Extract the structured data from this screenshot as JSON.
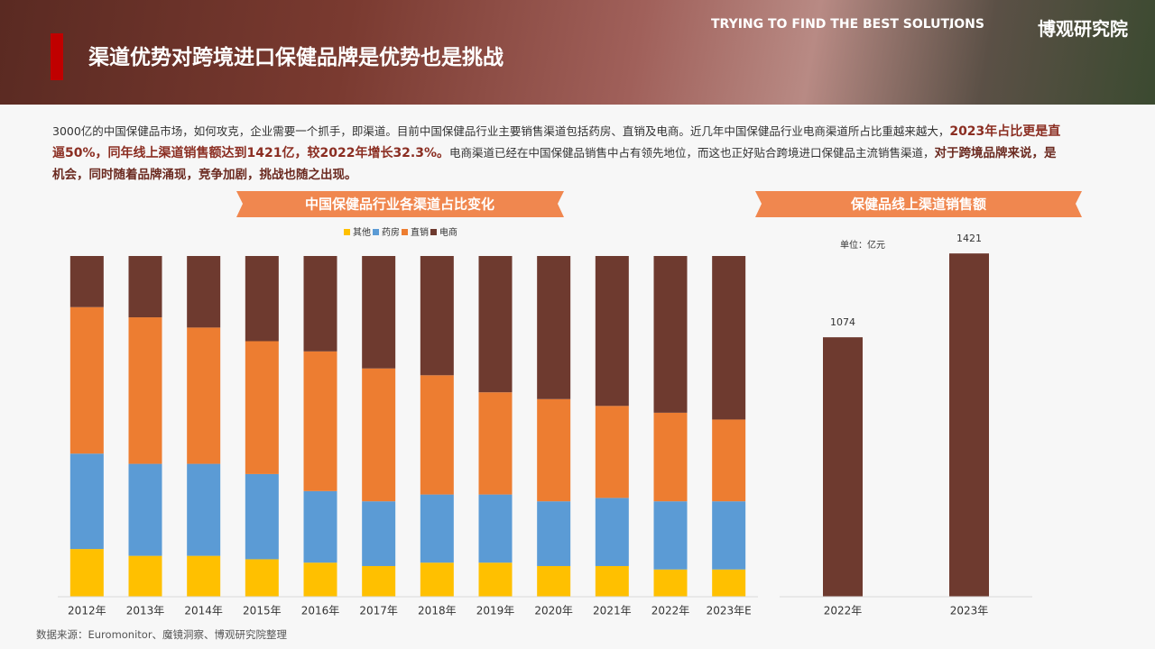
{
  "header": {
    "title": "渠道优势对跨境进口保健品牌是优势也是挑战",
    "tagline": "TRYING TO FIND THE BEST SOLUTIONS",
    "separator": "/",
    "brand": "博观研究院"
  },
  "intro": [
    "3000亿的中国保健品市场，如何攻克，企业需要一个抓手，即渠道。目前中国保健品行业主要销售渠道包括药房、直销及电商。近几年中国保健品行业电商渠道所占比重越来越大，",
    "2023年占比更是直逼50%，同年线上渠道销售额达到1421亿，较2022年增长32.3%。",
    "电商渠道已经在中国保健品销售中占有领先地位，而这也正好贴合跨境进口保健品主流销售渠道，",
    "对于跨境品牌来说，是机会，同时随着品牌涌现，竞争加剧，挑战也随之出现。"
  ],
  "chart_data": [
    {
      "type": "stacked_bar",
      "title": "中国保健品行业各渠道占比变化",
      "categories": [
        "2012年",
        "2013年",
        "2014年",
        "2015年",
        "2016年",
        "2017年",
        "2018年",
        "2019年",
        "2020年",
        "2021年",
        "2022年",
        "2023年E"
      ],
      "series": [
        {
          "name": "其他",
          "color": "#ffc000",
          "values": [
            14,
            12,
            12,
            11,
            10,
            9,
            10,
            10,
            9,
            9,
            8,
            8
          ]
        },
        {
          "name": "药房",
          "color": "#5b9bd5",
          "values": [
            28,
            27,
            27,
            25,
            21,
            19,
            20,
            20,
            19,
            20,
            20,
            20
          ]
        },
        {
          "name": "直销",
          "color": "#ed7d31",
          "values": [
            43,
            43,
            40,
            39,
            41,
            39,
            35,
            30,
            30,
            27,
            26,
            24
          ]
        },
        {
          "name": "电商",
          "color": "#6e3a2f",
          "values": [
            15,
            18,
            21,
            25,
            28,
            33,
            35,
            40,
            42,
            44,
            46,
            48
          ]
        }
      ],
      "ylim": [
        0,
        100
      ]
    },
    {
      "type": "bar",
      "title": "保健品线上渠道销售额",
      "unit": "单位：亿元",
      "categories": [
        "2022年",
        "2023年"
      ],
      "values": [
        1074,
        1421
      ],
      "color": "#6e3a2f",
      "ylim": [
        0,
        1500
      ]
    }
  ],
  "source": "数据来源：Euromonitor、魔镜洞察、博观研究院整理"
}
